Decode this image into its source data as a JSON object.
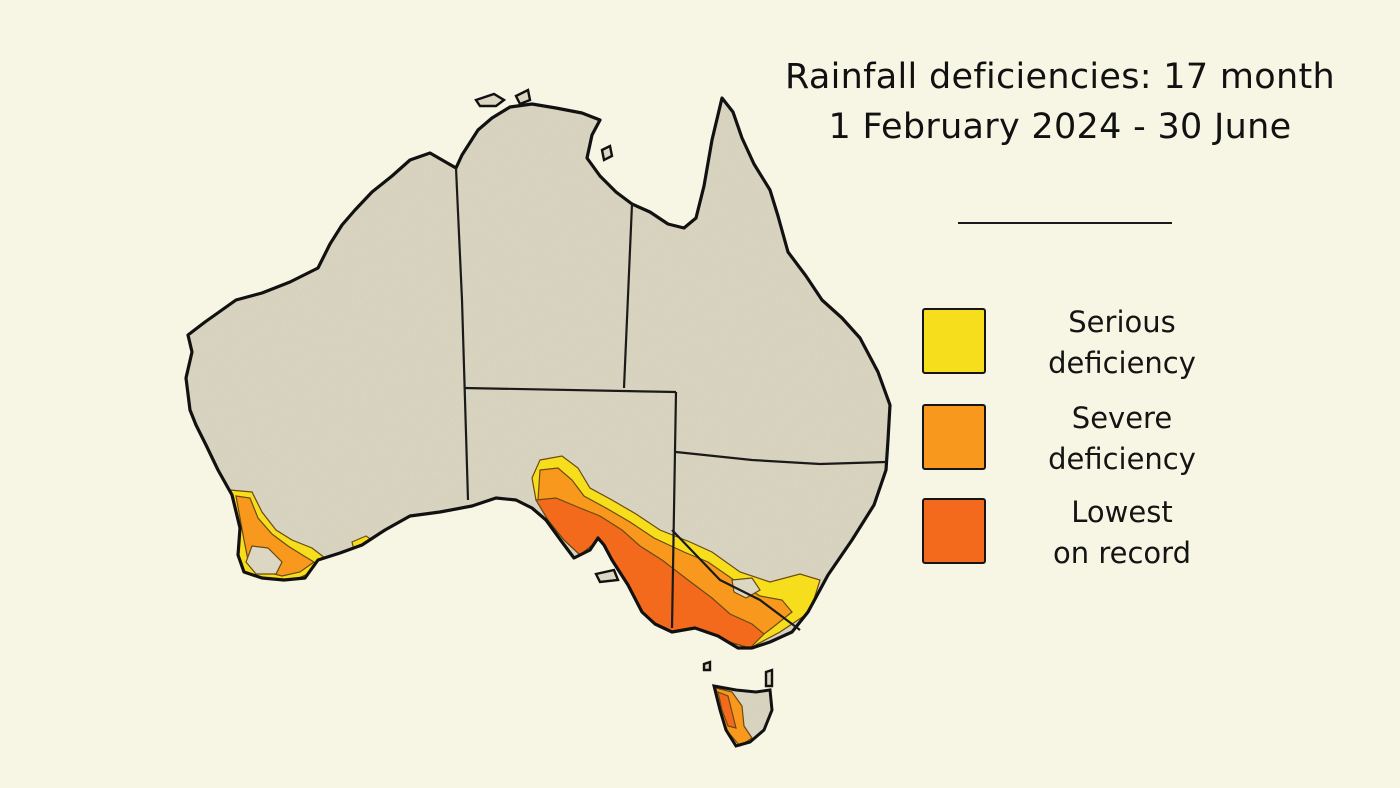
{
  "title": {
    "line1": "Rainfall deficiencies: 17 month",
    "line2": "1 February 2024 - 30 June"
  },
  "legend": {
    "items": [
      {
        "label": "Serious\ndeficiency",
        "color": "#f7de1d"
      },
      {
        "label": "Severe\ndeficiency",
        "color": "#f8991e"
      },
      {
        "label": "Lowest\non record",
        "color": "#f36a1c"
      }
    ]
  },
  "colors": {
    "background": "#f7f6e4",
    "land": "#dcd7c3",
    "outline": "#111111"
  }
}
